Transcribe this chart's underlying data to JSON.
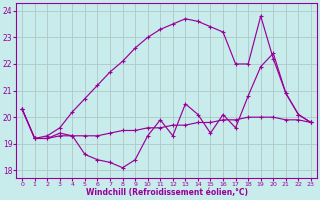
{
  "xlabel": "Windchill (Refroidissement éolien,°C)",
  "bg_color": "#c8ecec",
  "line_color": "#990099",
  "grid_color": "#b0c8c8",
  "xlim": [
    -0.5,
    23.5
  ],
  "ylim": [
    17.7,
    24.3
  ],
  "yticks": [
    18,
    19,
    20,
    21,
    22,
    23,
    24
  ],
  "xticks": [
    0,
    1,
    2,
    3,
    4,
    5,
    6,
    7,
    8,
    9,
    10,
    11,
    12,
    13,
    14,
    15,
    16,
    17,
    18,
    19,
    20,
    21,
    22,
    23
  ],
  "line_straight": [
    20.3,
    19.2,
    19.3,
    19.6,
    20.2,
    20.7,
    21.2,
    21.7,
    22.1,
    22.6,
    23.0,
    23.3,
    23.5,
    23.7,
    23.6,
    23.4,
    23.2,
    22.0,
    22.0,
    23.8,
    22.2,
    20.9,
    20.1,
    19.8
  ],
  "line_flat": [
    20.3,
    19.2,
    19.2,
    19.3,
    19.3,
    19.3,
    19.3,
    19.4,
    19.5,
    19.5,
    19.6,
    19.6,
    19.7,
    19.7,
    19.8,
    19.8,
    19.9,
    19.9,
    20.0,
    20.0,
    20.0,
    19.9,
    19.9,
    19.8
  ],
  "line_dip": [
    20.3,
    19.2,
    19.2,
    19.4,
    19.3,
    18.6,
    18.4,
    18.3,
    18.1,
    18.4,
    19.3,
    19.9,
    19.3,
    20.5,
    20.1,
    19.4,
    20.1,
    19.6,
    20.8,
    21.9,
    22.4,
    20.9,
    20.1,
    19.8
  ]
}
